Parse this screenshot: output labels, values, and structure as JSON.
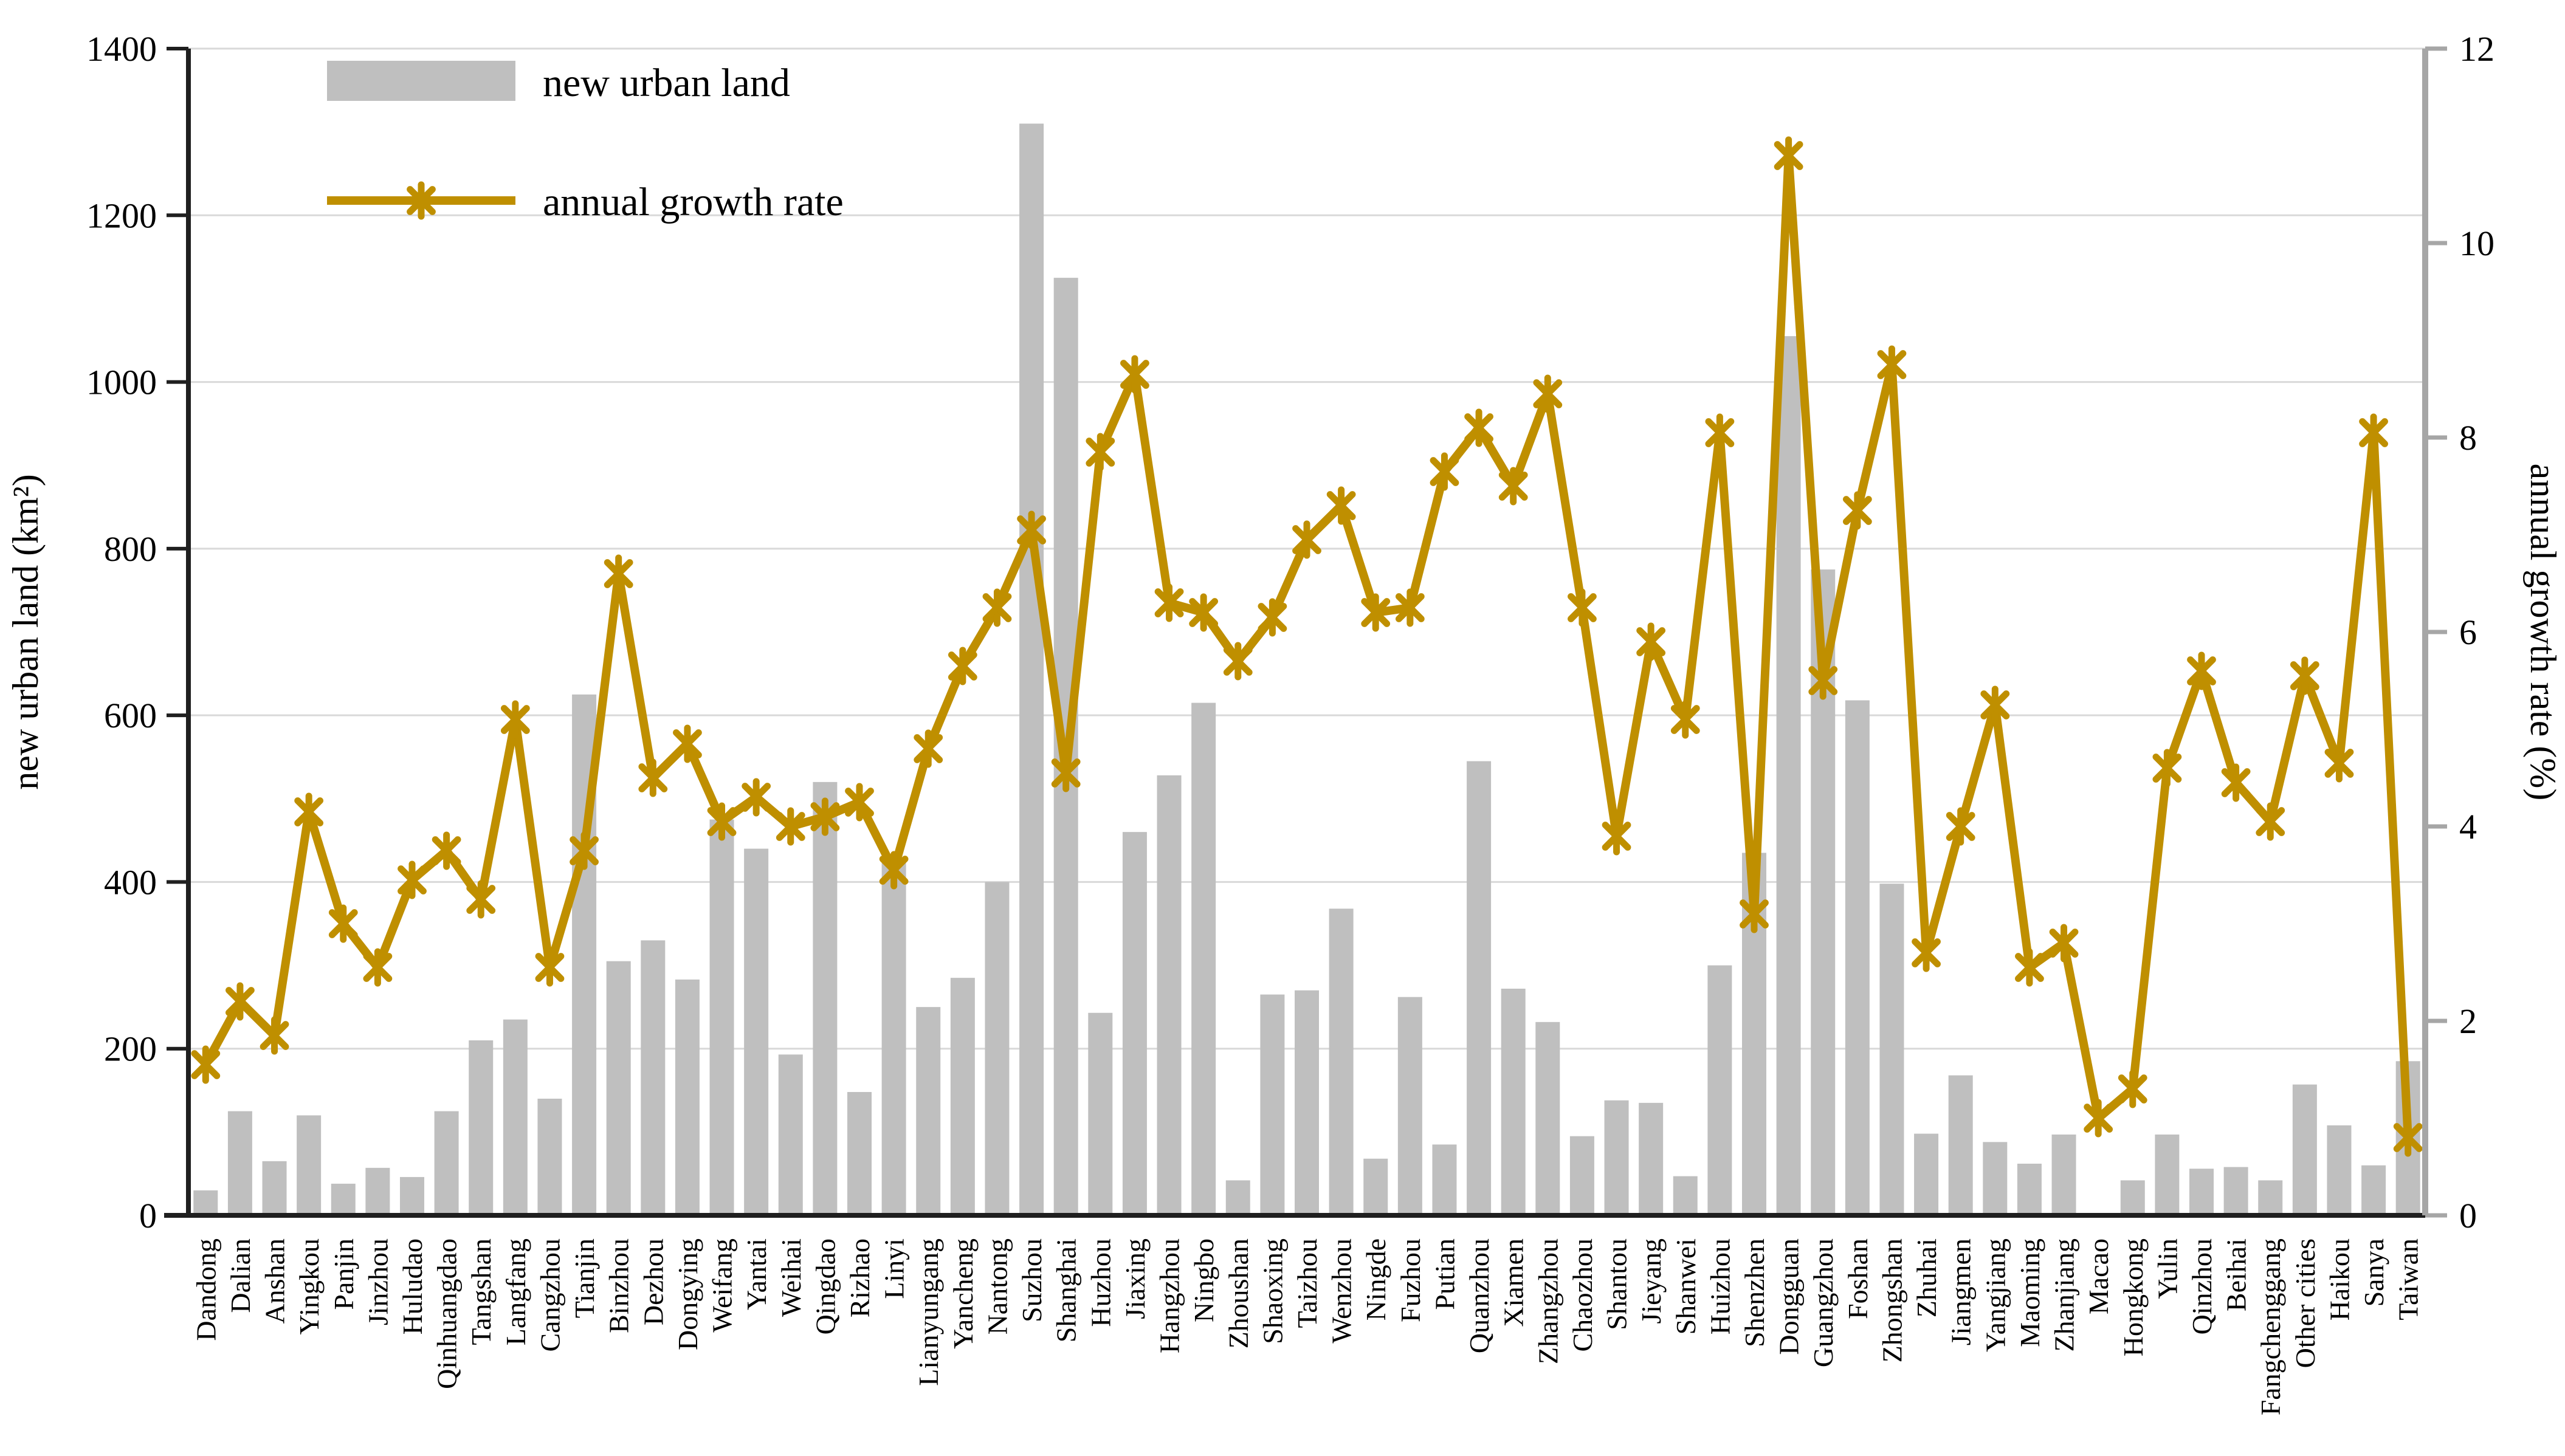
{
  "figure": {
    "background": "#FFFFFF"
  },
  "chart_data": {
    "type": "bar",
    "subtype": "bar+line combo, dual axis",
    "categories": [
      "Dandong",
      "Dalian",
      "Anshan",
      "Yingkou",
      "Panjin",
      "Jinzhou",
      "Huludao",
      "Qinhuangdao",
      "Tangshan",
      "Langfang",
      "Cangzhou",
      "Tianjin",
      "Binzhou",
      "Dezhou",
      "Dongying",
      "Weifang",
      "Yantai",
      "Weihai",
      "Qingdao",
      "Rizhao",
      "Linyi",
      "Lianyungang",
      "Yancheng",
      "Nantong",
      "Suzhou",
      "Shanghai",
      "Huzhou",
      "Jiaxing",
      "Hangzhou",
      "Ningbo",
      "Zhoushan",
      "Shaoxing",
      "Taizhou",
      "Wenzhou",
      "Ningde",
      "Fuzhou",
      "Putian",
      "Quanzhou",
      "Xiamen",
      "Zhangzhou",
      "Chaozhou",
      "Shantou",
      "Jieyang",
      "Shanwei",
      "Huizhou",
      "Shenzhen",
      "Dongguan",
      "Guangzhou",
      "Foshan",
      "Zhongshan",
      "Zhuhai",
      "Jiangmen",
      "Yangjiang",
      "Maoming",
      "Zhanjiang",
      "Macao",
      "Hongkong",
      "Yulin",
      "Qinzhou",
      "Beihai",
      "Fangchenggang",
      "Other cities",
      "Haikou",
      "Sanya",
      "Taiwan"
    ],
    "series": [
      {
        "name": "new urban land",
        "type": "bar",
        "axis": "left",
        "color": "#BFBFBF",
        "values": [
          30,
          125,
          65,
          120,
          38,
          57,
          46,
          125,
          210,
          235,
          140,
          625,
          305,
          330,
          283,
          475,
          440,
          193,
          520,
          148,
          425,
          250,
          285,
          400,
          1310,
          1125,
          243,
          460,
          528,
          615,
          42,
          265,
          270,
          368,
          68,
          262,
          85,
          545,
          272,
          232,
          95,
          138,
          135,
          47,
          300,
          435,
          1055,
          775,
          618,
          398,
          98,
          168,
          88,
          62,
          97,
          2,
          42,
          97,
          56,
          58,
          42,
          157,
          108,
          60,
          185
        ]
      },
      {
        "name": "annual growth rate",
        "type": "line",
        "axis": "right",
        "color": "#BF8F00",
        "marker": "star",
        "values": [
          1.55,
          2.2,
          1.85,
          4.15,
          3.0,
          2.55,
          3.45,
          3.75,
          3.25,
          5.1,
          2.55,
          3.75,
          6.6,
          4.5,
          4.85,
          4.05,
          4.3,
          4.0,
          4.1,
          4.25,
          3.55,
          4.8,
          5.65,
          6.25,
          7.05,
          4.55,
          7.85,
          8.65,
          6.3,
          6.2,
          5.7,
          6.15,
          6.95,
          7.3,
          6.2,
          6.25,
          7.65,
          8.1,
          7.5,
          8.45,
          6.25,
          3.9,
          5.9,
          5.1,
          8.05,
          3.1,
          10.9,
          5.5,
          7.25,
          8.75,
          2.7,
          4.0,
          5.25,
          2.55,
          2.8,
          1.0,
          1.3,
          4.6,
          5.6,
          4.45,
          4.05,
          5.55,
          4.65,
          8.05,
          0.8
        ]
      }
    ],
    "left_axis": {
      "title": "new urban land (km²)",
      "min": 0,
      "max": 1400,
      "tick_step": 200,
      "ticks": [
        0,
        200,
        400,
        600,
        800,
        1000,
        1200,
        1400
      ]
    },
    "right_axis": {
      "title": "annual growth rate (%)",
      "min": 0,
      "max": 12,
      "tick_step": 2,
      "ticks": [
        0,
        2,
        4,
        6,
        8,
        10,
        12
      ]
    },
    "grid": "horizontal gridlines on",
    "legend_position": "top-left inside plot",
    "theme": {
      "bar": "#BFBFBF",
      "line": "#BF8F00",
      "grid": "#D9D9D9",
      "axis": "#1F1F1F",
      "right_axis_line": "#A6A6A6",
      "text": "#000000",
      "background": "#FFFFFF"
    }
  }
}
